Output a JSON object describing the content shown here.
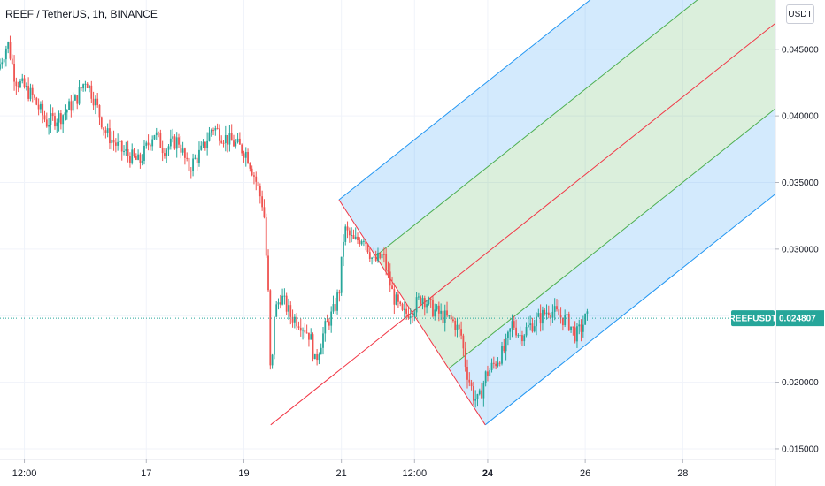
{
  "header": {
    "title": "REEF / TetherUS, 1h, BINANCE",
    "currency": "USDT"
  },
  "price_tag": {
    "symbol": "REEFUSDT",
    "price": "0.024807",
    "price_value": 0.024807,
    "color": "#26a69a"
  },
  "colors": {
    "up": "#26a69a",
    "down": "#ef5350",
    "pitch_blue": "#2196f3",
    "pitch_green": "#4caf50",
    "pitch_red": "#f23645"
  },
  "chart_data": {
    "type": "candlestick",
    "title": "REEF / TetherUS, 1h, BINANCE",
    "y_ticks": [
      "0.045000",
      "0.040000",
      "0.035000",
      "0.030000",
      "0.025000",
      "0.020000",
      "0.015000"
    ],
    "y_tick_values": [
      0.045,
      0.04,
      0.035,
      0.03,
      0.025,
      0.02,
      0.015
    ],
    "ylim": [
      0.0142,
      0.0487
    ],
    "x_ticks": [
      {
        "label": "12:00",
        "day": 14.5,
        "bold": false
      },
      {
        "label": "17",
        "day": 17,
        "bold": false
      },
      {
        "label": "19",
        "day": 19,
        "bold": false
      },
      {
        "label": "21",
        "day": 21,
        "bold": false
      },
      {
        "label": "12:00",
        "day": 22.5,
        "bold": false
      },
      {
        "label": "24",
        "day": 24,
        "bold": true
      },
      {
        "label": "26",
        "day": 26,
        "bold": false
      },
      {
        "label": "28",
        "day": 28,
        "bold": false
      }
    ],
    "xlim": [
      14.0,
      29.9
    ],
    "grid": true,
    "price_path": [
      [
        14.0,
        0.0435
      ],
      [
        14.2,
        0.0455
      ],
      [
        14.35,
        0.0428
      ],
      [
        14.7,
        0.0415
      ],
      [
        15.0,
        0.0395
      ],
      [
        15.3,
        0.04
      ],
      [
        15.6,
        0.0412
      ],
      [
        15.8,
        0.0428
      ],
      [
        16.0,
        0.041
      ],
      [
        16.2,
        0.0388
      ],
      [
        16.5,
        0.0375
      ],
      [
        16.9,
        0.0365
      ],
      [
        17.2,
        0.0388
      ],
      [
        17.4,
        0.0375
      ],
      [
        17.7,
        0.0382
      ],
      [
        17.9,
        0.036
      ],
      [
        18.2,
        0.0375
      ],
      [
        18.4,
        0.0392
      ],
      [
        18.6,
        0.0385
      ],
      [
        18.9,
        0.0378
      ],
      [
        19.1,
        0.0372
      ],
      [
        19.3,
        0.035
      ],
      [
        19.45,
        0.033
      ],
      [
        19.55,
        0.026
      ],
      [
        19.6,
        0.0185
      ],
      [
        19.65,
        0.025
      ],
      [
        19.8,
        0.0265
      ],
      [
        20.0,
        0.025
      ],
      [
        20.2,
        0.0245
      ],
      [
        20.4,
        0.0235
      ],
      [
        20.5,
        0.0215
      ],
      [
        20.7,
        0.024
      ],
      [
        20.9,
        0.0255
      ],
      [
        21.0,
        0.027
      ],
      [
        21.1,
        0.0315
      ],
      [
        21.3,
        0.0305
      ],
      [
        21.5,
        0.031
      ],
      [
        21.7,
        0.029
      ],
      [
        21.9,
        0.0295
      ],
      [
        22.1,
        0.0265
      ],
      [
        22.3,
        0.025
      ],
      [
        22.5,
        0.0255
      ],
      [
        22.7,
        0.0265
      ],
      [
        22.9,
        0.0255
      ],
      [
        23.1,
        0.025
      ],
      [
        23.35,
        0.0245
      ],
      [
        23.5,
        0.0235
      ],
      [
        23.6,
        0.021
      ],
      [
        23.75,
        0.019
      ],
      [
        23.85,
        0.0185
      ],
      [
        24.0,
        0.0205
      ],
      [
        24.2,
        0.0215
      ],
      [
        24.4,
        0.0225
      ],
      [
        24.55,
        0.0245
      ],
      [
        24.7,
        0.0235
      ],
      [
        24.9,
        0.0242
      ],
      [
        25.1,
        0.0248
      ],
      [
        25.3,
        0.0255
      ],
      [
        25.5,
        0.025
      ],
      [
        25.7,
        0.0245
      ],
      [
        25.85,
        0.0235
      ],
      [
        25.95,
        0.024
      ],
      [
        26.05,
        0.0248
      ]
    ],
    "pitchfork": {
      "p1": {
        "day": 19.55,
        "price": 0.0168
      },
      "p2": {
        "day": 20.95,
        "price": 0.0337
      },
      "p3": {
        "day": 23.95,
        "price": 0.0168
      },
      "levels": [
        -1,
        -0.5,
        0,
        0.5,
        1
      ]
    }
  }
}
